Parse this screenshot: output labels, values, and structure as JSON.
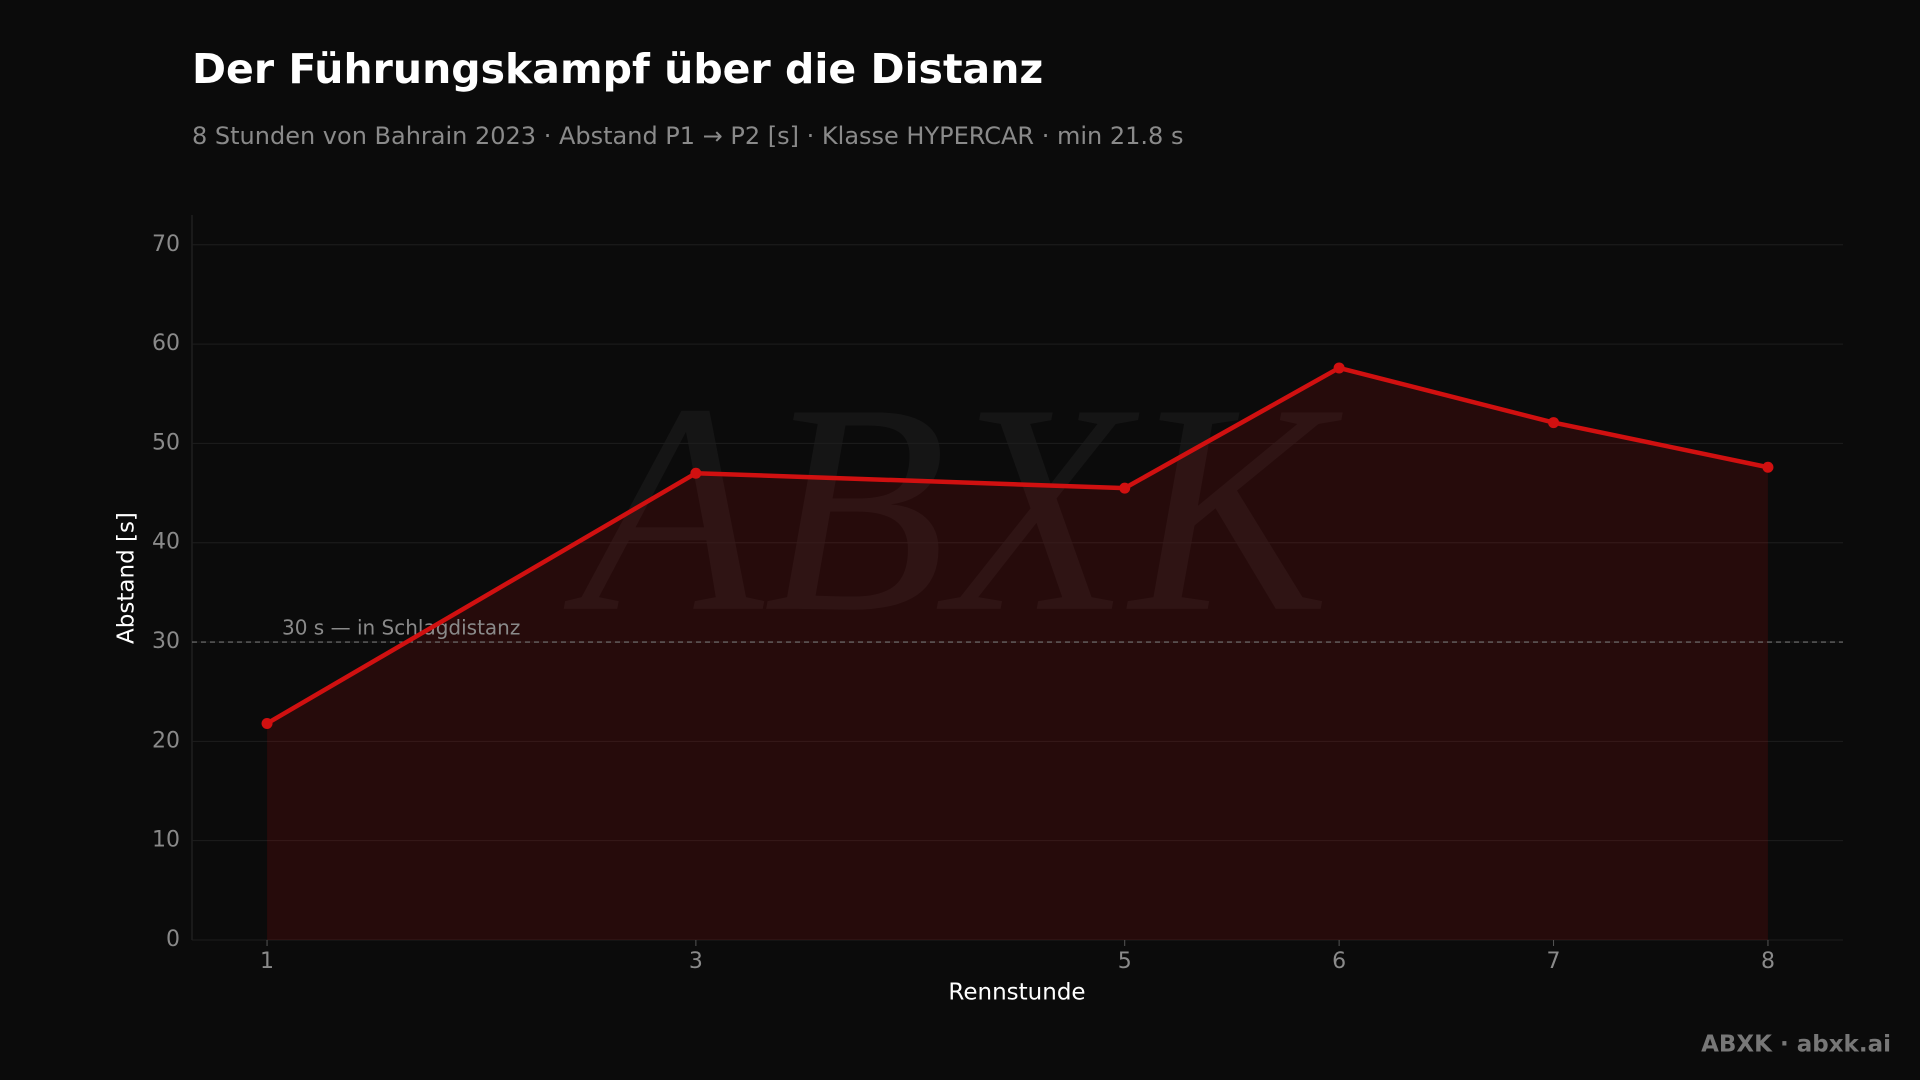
{
  "chart_data": {
    "type": "line",
    "title": "Der Führungskampf über die Distanz",
    "subtitle": "8 Stunden von Bahrain 2023 · Abstand P1 → P2 [s] · Klasse HYPERCAR · min 21.8 s",
    "x_label": "Rennstunde",
    "y_label": "Abstand [s]",
    "x": [
      1,
      3,
      5,
      6,
      7,
      8
    ],
    "values": [
      21.8,
      47,
      45.5,
      57.6,
      52.1,
      47.6
    ],
    "color": "#d01010",
    "area": true,
    "xlim": [
      0.65,
      8.35
    ],
    "xticks": [
      1,
      3,
      5,
      6,
      7,
      8
    ],
    "ylim": [
      0,
      73
    ],
    "yticks": [
      0,
      10,
      20,
      30,
      40,
      50,
      60,
      70
    ],
    "grid": true,
    "ref_line": {
      "value": 30,
      "label": "30 s — in Schlagdistanz"
    },
    "watermark": "ABXK",
    "footer": "ABXK · abxk.ai"
  }
}
